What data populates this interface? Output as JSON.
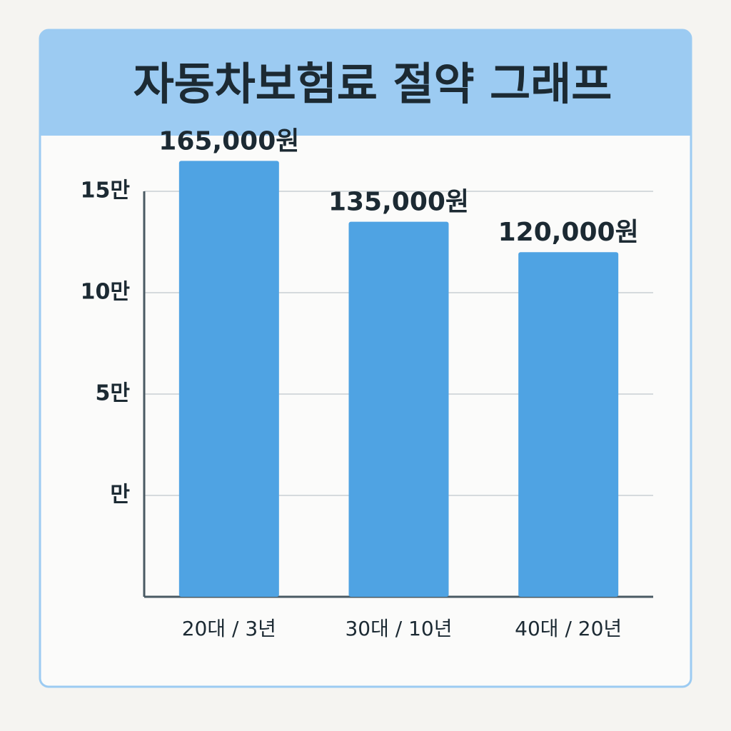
{
  "chart_data": {
    "type": "bar",
    "title": "자동차보험료 절약 그래프",
    "categories": [
      "20대 / 3년",
      "30대 / 10년",
      "40대 / 20년"
    ],
    "values": [
      165000,
      135000,
      120000
    ],
    "value_labels": [
      "165,000원",
      "135,000원",
      "120,000원"
    ],
    "color": "#4fa3e3",
    "ylim": [
      -50000,
      150000
    ],
    "yticks": [
      {
        "value": 0,
        "label": "만"
      },
      {
        "value": 50000,
        "label": "5만"
      },
      {
        "value": 100000,
        "label": "10만"
      },
      {
        "value": 150000,
        "label": "15만"
      }
    ],
    "grid": true
  }
}
